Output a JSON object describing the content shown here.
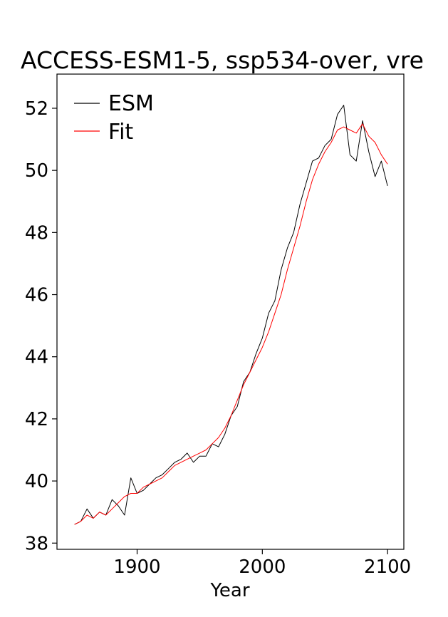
{
  "chart_data": {
    "type": "line",
    "title": "ACCESS-ESM1-5, ssp534-over, vre",
    "xlabel": "Year",
    "ylabel": "",
    "xlim": [
      1836,
      2113
    ],
    "ylim": [
      37.8,
      53.1
    ],
    "xticks": [
      1900,
      2000,
      2100
    ],
    "yticks": [
      38,
      40,
      42,
      44,
      46,
      48,
      50,
      52
    ],
    "grid": false,
    "legend_position": "top-left",
    "series": [
      {
        "name": "ESM",
        "color": "#000000",
        "x": [
          1850,
          1855,
          1860,
          1865,
          1870,
          1875,
          1880,
          1885,
          1890,
          1895,
          1900,
          1905,
          1910,
          1915,
          1920,
          1925,
          1930,
          1935,
          1940,
          1945,
          1950,
          1955,
          1960,
          1965,
          1970,
          1975,
          1980,
          1985,
          1990,
          1995,
          2000,
          2005,
          2010,
          2015,
          2020,
          2025,
          2030,
          2035,
          2040,
          2045,
          2050,
          2055,
          2060,
          2065,
          2070,
          2075,
          2080,
          2085,
          2090,
          2095,
          2100
        ],
        "y": [
          38.6,
          38.7,
          39.1,
          38.8,
          39.0,
          38.9,
          39.4,
          39.2,
          38.9,
          40.1,
          39.6,
          39.7,
          39.9,
          40.1,
          40.2,
          40.4,
          40.6,
          40.7,
          40.9,
          40.6,
          40.8,
          40.8,
          41.2,
          41.1,
          41.5,
          42.1,
          42.4,
          43.2,
          43.5,
          44.1,
          44.6,
          45.4,
          45.8,
          46.8,
          47.5,
          48.0,
          48.9,
          49.6,
          50.3,
          50.4,
          50.8,
          51.0,
          51.8,
          52.1,
          50.5,
          50.3,
          51.6,
          50.6,
          49.8,
          50.3,
          49.5
        ]
      },
      {
        "name": "Fit",
        "color": "#ff0000",
        "x": [
          1850,
          1855,
          1860,
          1865,
          1870,
          1875,
          1880,
          1885,
          1890,
          1895,
          1900,
          1905,
          1910,
          1915,
          1920,
          1925,
          1930,
          1935,
          1940,
          1945,
          1950,
          1955,
          1960,
          1965,
          1970,
          1975,
          1980,
          1985,
          1990,
          1995,
          2000,
          2005,
          2010,
          2015,
          2020,
          2025,
          2030,
          2035,
          2040,
          2045,
          2050,
          2055,
          2060,
          2065,
          2070,
          2075,
          2080,
          2085,
          2090,
          2095,
          2100
        ],
        "y": [
          38.6,
          38.7,
          38.9,
          38.8,
          39.0,
          38.9,
          39.1,
          39.3,
          39.5,
          39.6,
          39.6,
          39.8,
          39.9,
          40.0,
          40.1,
          40.3,
          40.5,
          40.6,
          40.7,
          40.8,
          40.9,
          41.0,
          41.2,
          41.4,
          41.7,
          42.1,
          42.6,
          43.1,
          43.5,
          43.9,
          44.3,
          44.8,
          45.4,
          46.0,
          46.8,
          47.5,
          48.2,
          49.0,
          49.7,
          50.2,
          50.6,
          50.9,
          51.3,
          51.4,
          51.3,
          51.2,
          51.5,
          51.1,
          50.9,
          50.5,
          50.2
        ]
      }
    ]
  }
}
